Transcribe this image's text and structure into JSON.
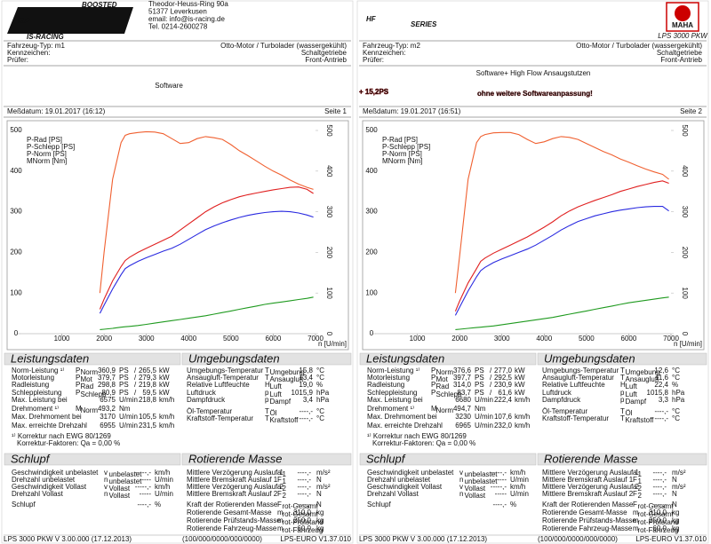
{
  "chart_data": [
    {
      "type": "line",
      "xlabel": "n [U/min]",
      "legend": "upper left",
      "xlim": [
        0,
        7000
      ],
      "ylim": [
        0,
        500
      ],
      "y2lim": [
        0,
        500
      ],
      "xticks": [
        1000,
        2000,
        3000,
        4000,
        5000,
        6000,
        7000
      ],
      "yticks": [
        0,
        100,
        200,
        300,
        400,
        500
      ],
      "y2ticks": [
        0,
        100,
        200,
        300,
        400,
        500
      ],
      "x": [
        1900,
        2000,
        2200,
        2400,
        2500,
        2600,
        2800,
        3000,
        3200,
        3400,
        3600,
        3800,
        4000,
        4200,
        4400,
        4600,
        4800,
        5000,
        5200,
        5400,
        5600,
        5800,
        6000,
        6200,
        6400,
        6600,
        6800,
        6950
      ],
      "series": [
        {
          "name": "P-Rad [PS]",
          "color": "#2a2ae0",
          "values": [
            50,
            70,
            110,
            145,
            160,
            167,
            178,
            187,
            195,
            203,
            210,
            220,
            232,
            244,
            256,
            265,
            273,
            280,
            286,
            291,
            295,
            298,
            300,
            301,
            300,
            297,
            292,
            287
          ]
        },
        {
          "name": "P-Schlepp [PS]",
          "color": "#1f9a1f",
          "values": [
            10,
            11,
            13,
            16,
            17,
            18,
            20,
            23,
            26,
            29,
            32,
            35,
            38,
            41,
            44,
            48,
            52,
            56,
            60,
            64,
            68,
            72,
            75,
            78,
            81,
            84,
            87,
            90
          ]
        },
        {
          "name": "P-Norm [PS]",
          "color": "#e02020",
          "values": [
            60,
            85,
            130,
            165,
            180,
            188,
            200,
            210,
            220,
            230,
            240,
            255,
            270,
            285,
            300,
            312,
            322,
            330,
            337,
            342,
            346,
            350,
            354,
            357,
            360,
            361,
            355,
            345
          ]
        },
        {
          "name": "MNorm [Nm]",
          "color": "#f06030",
          "axis": "y2",
          "values": [
            100,
            200,
            380,
            470,
            488,
            492,
            495,
            497,
            496,
            492,
            480,
            468,
            470,
            480,
            485,
            482,
            478,
            465,
            450,
            438,
            425,
            412,
            400,
            390,
            378,
            368,
            360,
            355
          ]
        }
      ]
    },
    {
      "type": "line",
      "xlabel": "n [U/min]",
      "legend": "upper left",
      "xlim": [
        0,
        7000
      ],
      "ylim": [
        0,
        500
      ],
      "y2lim": [
        0,
        500
      ],
      "xticks": [
        1000,
        2000,
        3000,
        4000,
        5000,
        6000,
        7000
      ],
      "yticks": [
        0,
        100,
        200,
        300,
        400,
        500
      ],
      "y2ticks": [
        0,
        100,
        200,
        300,
        400,
        500
      ],
      "x": [
        1900,
        2000,
        2200,
        2400,
        2500,
        2600,
        2800,
        3000,
        3200,
        3400,
        3600,
        3800,
        4000,
        4200,
        4400,
        4600,
        4800,
        5000,
        5200,
        5400,
        5600,
        5800,
        6000,
        6200,
        6400,
        6600,
        6800,
        6950
      ],
      "series": [
        {
          "name": "P-Rad [PS]",
          "color": "#2a2ae0",
          "values": [
            45,
            65,
            105,
            140,
            155,
            163,
            175,
            184,
            192,
            200,
            208,
            218,
            230,
            242,
            255,
            266,
            276,
            283,
            290,
            295,
            300,
            304,
            307,
            310,
            312,
            313,
            313,
            302
          ]
        },
        {
          "name": "P-Schlepp [PS]",
          "color": "#1f9a1f",
          "values": [
            10,
            11,
            13,
            15,
            16,
            17,
            19,
            22,
            25,
            28,
            31,
            34,
            37,
            40,
            44,
            48,
            52,
            56,
            60,
            64,
            68,
            72,
            76,
            79,
            82,
            85,
            88,
            90
          ]
        },
        {
          "name": "P-Norm [PS]",
          "color": "#e02020",
          "values": [
            55,
            80,
            125,
            160,
            178,
            186,
            198,
            208,
            218,
            228,
            238,
            250,
            262,
            275,
            290,
            302,
            312,
            320,
            328,
            335,
            342,
            350,
            356,
            362,
            367,
            372,
            376,
            370
          ]
        },
        {
          "name": "MNorm [Nm]",
          "color": "#f06030",
          "axis": "y2",
          "values": [
            100,
            190,
            380,
            470,
            485,
            490,
            494,
            495,
            495,
            490,
            478,
            468,
            472,
            480,
            485,
            483,
            478,
            468,
            458,
            448,
            440,
            430,
            422,
            413,
            405,
            398,
            392,
            380
          ]
        }
      ]
    }
  ],
  "panels": [
    {
      "brand": {
        "tag": "BOOSTED",
        "logo": "ISR",
        "name": "IS-RACING",
        "address": [
          "Theodor-Heuss-Ring 90a",
          "51377 Leverkusen",
          "email: info@is-racing.de",
          "Tel. 0214-2600278"
        ]
      },
      "vehicle": [
        [
          "Fahrzeug-Typ: m1",
          "Otto-Motor / Turbolader (wassergekühlt)"
        ],
        [
          "Kennzeichen:",
          "Schaltgetriebe"
        ],
        [
          "Prüfer:",
          "Front-Antrieb"
        ]
      ],
      "headline": {
        "text": "Software"
      },
      "date": "Meßdatum: 19.01.2017 (16:12)",
      "page": "Seite 1",
      "leistung": {
        "title": "Leistungsdaten",
        "rows": [
          {
            "label": "Norm-Leistung ¹⁾",
            "sym": "P",
            "sub": "Norm",
            "v1": "360,9",
            "u1": "PS",
            "sep": "/",
            "v2": "265,5",
            "u2": "kW",
            "color": "#e00000"
          },
          {
            "label": "Motorleistung",
            "sym": "P",
            "sub": "Mot",
            "v1": "379,7",
            "u1": "PS",
            "sep": "/",
            "v2": "279,3",
            "u2": "kW",
            "color": "#e00000"
          },
          {
            "label": "Radleistung",
            "sym": "P",
            "sub": "Rad",
            "v1": "298,8",
            "u1": "PS",
            "sep": "/",
            "v2": "219,8",
            "u2": "kW",
            "color": "#0000d0"
          },
          {
            "label": "Schleppleistung",
            "sym": "P",
            "sub": "Schlepp",
            "v1": "80,9",
            "u1": "PS",
            "sep": "/",
            "v2": "59,5",
            "u2": "kW",
            "color": "#008000"
          },
          {
            "label": "Max. Leistung bei",
            "v1": "6575",
            "u1": "U/min",
            "v2": "218,8",
            "u2": "km/h"
          },
          {
            "label": "Drehmoment ¹⁾",
            "sym": "M",
            "sub": "Norm",
            "v1": "493,2",
            "u1": "Nm",
            "color": "#e00000"
          },
          {
            "label": "Max. Drehmoment bei",
            "v1": "3170",
            "u1": "U/min",
            "v2": "105,5",
            "u2": "km/h"
          },
          {
            "label": "Max. erreichte Drehzahl",
            "v1": "6955",
            "u1": "U/min",
            "v2": "231,5",
            "u2": "km/h"
          }
        ],
        "notes": [
          "¹⁾ Korrektur nach EWG 80/1269",
          "Korrektur-Faktoren: Qa = 0,00 %"
        ]
      },
      "umgebung": {
        "title": "Umgebungsdaten",
        "rows": [
          {
            "label": "Umgebungs-Temperatur",
            "sym": "T",
            "sub": "Umgebung",
            "v1": "15,8",
            "u1": "°C"
          },
          {
            "label": "Ansaugluft-Temperatur",
            "sym": "T",
            "sub": "Ansaugluft",
            "v1": "13,4",
            "u1": "°C"
          },
          {
            "label": "Relative Luftfeuchte",
            "sym": "H",
            "sub": "Luft",
            "v1": "19,0",
            "u1": "%"
          },
          {
            "label": "Luftdruck",
            "sym": "p",
            "sub": "Luft",
            "v1": "1015,9",
            "u1": "hPa"
          },
          {
            "label": "Dampfdruck",
            "sym": "p",
            "sub": "Dampf",
            "v1": "3,4",
            "u1": "hPa"
          },
          {
            "label": "Öl-Temperatur",
            "sym": "T",
            "sub": "Öl",
            "v1": "----,-",
            "u1": "°C"
          },
          {
            "label": "Kraftstoff-Temperatur",
            "sym": "T",
            "sub": "Kraftstoff",
            "v1": "----,-",
            "u1": "°C"
          }
        ]
      },
      "schlupf": {
        "title": "Schlupf",
        "rows": [
          {
            "label": "Geschwindigkeit unbelastet",
            "sym": "v",
            "sub": "unbelastet",
            "v1": "-----,-",
            "u1": "km/h"
          },
          {
            "label": "Drehzahl unbelastet",
            "sym": "n",
            "sub": "unbelastet",
            "v1": "-----",
            "u1": "U/min"
          },
          {
            "label": "Geschwindigkeit Vollast",
            "sym": "v",
            "sub": "Vollast",
            "v1": "-----,-",
            "u1": "km/h"
          },
          {
            "label": "Drehzahl Vollast",
            "sym": "n",
            "sub": "Vollast",
            "v1": "-----",
            "u1": "U/min"
          },
          {
            "label": "Schlupf",
            "v1": "----,-",
            "u1": "%"
          }
        ]
      },
      "rotierend": {
        "title": "Rotierende Masse",
        "rows": [
          {
            "label": "Mittlere Verzögerung Auslauf 1",
            "sym": "a",
            "sub": "1",
            "v1": "----,-",
            "u1": "m/s²"
          },
          {
            "label": "Mittlere Bremskraft Auslauf 1",
            "sym": "F",
            "sub": "1",
            "v1": "----,-",
            "u1": "N"
          },
          {
            "label": "Mittlere Verzögerung Auslauf 2",
            "sym": "a",
            "sub": "2",
            "v1": "----,-",
            "u1": "m/s²"
          },
          {
            "label": "Mittlere Bremskraft Auslauf 2",
            "sym": "F",
            "sub": "2",
            "v1": "----,-",
            "u1": "N"
          },
          {
            "label": "Kraft der Rotierenden Masse",
            "sym": "F",
            "sub": "rot-Gesamt",
            "v1": "----,-",
            "u1": "N"
          },
          {
            "label": "Rotierende Gesamt-Masse",
            "sym": "m",
            "sub": "rot-Gesamt",
            "v1": "310,0",
            "u1": "kg"
          },
          {
            "label": "Rotierende Prüfstands-Masse",
            "sym": "m",
            "sub": "rot-Prüfstand",
            "v1": "250,0",
            "u1": "kg"
          },
          {
            "label": "Rotierende Fahrzeug-Masse",
            "sym": "m",
            "sub": "rot-Fahrzeug",
            "v1": "60,0",
            "u1": "kg"
          }
        ]
      },
      "footer": [
        "LPS 3000 PKW V 3.00.000 (17.12.2013)",
        "(100/000/0000/000/0000)",
        "LPS-EURO V1.37.010"
      ]
    },
    {
      "brand": {
        "logo": "HF",
        "tag": "SERIES",
        "maha": "MAHA",
        "model": "LPS 3000 PKW"
      },
      "vehicle": [
        [
          "Fahrzeug-Typ: m2",
          "Otto-Motor / Turbolader (wassergekühlt)"
        ],
        [
          "Kennzeichen:",
          "Schaltgetriebe"
        ],
        [
          "Prüfer:",
          "Front-Antrieb"
        ]
      ],
      "headline": {
        "text": "Software+ High Flow Ansaugstutzen",
        "gain": "+ 15,2PS",
        "note": "ohne weitere Softwareanpassung!"
      },
      "date": "Meßdatum: 19.01.2017 (16:51)",
      "page": "Seite 2",
      "leistung": {
        "title": "Leistungsdaten",
        "rows": [
          {
            "label": "Norm-Leistung ¹⁾",
            "sym": "P",
            "sub": "Norm",
            "v1": "376,6",
            "u1": "PS",
            "sep": "/",
            "v2": "277,0",
            "u2": "kW",
            "color": "#e00000"
          },
          {
            "label": "Motorleistung",
            "sym": "P",
            "sub": "Mot",
            "v1": "397,7",
            "u1": "PS",
            "sep": "/",
            "v2": "292,5",
            "u2": "kW",
            "color": "#e00000"
          },
          {
            "label": "Radleistung",
            "sym": "P",
            "sub": "Rad",
            "v1": "314,0",
            "u1": "PS",
            "sep": "/",
            "v2": "230,9",
            "u2": "kW",
            "color": "#0000d0"
          },
          {
            "label": "Schleppleistung",
            "sym": "P",
            "sub": "Schlepp",
            "v1": "83,7",
            "u1": "PS",
            "sep": "/",
            "v2": "61,6",
            "u2": "kW",
            "color": "#008000"
          },
          {
            "label": "Max. Leistung bei",
            "v1": "6680",
            "u1": "U/min",
            "v2": "222,4",
            "u2": "km/h"
          },
          {
            "label": "Drehmoment ¹⁾",
            "sym": "M",
            "sub": "Norm",
            "v1": "494,7",
            "u1": "Nm",
            "color": "#e00000"
          },
          {
            "label": "Max. Drehmoment bei",
            "v1": "3230",
            "u1": "U/min",
            "v2": "107,6",
            "u2": "km/h"
          },
          {
            "label": "Max. erreichte Drehzahl",
            "v1": "6965",
            "u1": "U/min",
            "v2": "232,0",
            "u2": "km/h"
          }
        ],
        "notes": [
          "¹⁾ Korrektur nach EWG 80/1269",
          "Korrektur-Faktoren: Qa = 0,00 %"
        ]
      },
      "umgebung": {
        "title": "Umgebungsdaten",
        "rows": [
          {
            "label": "Umgebungs-Temperatur",
            "sym": "T",
            "sub": "Umgebung",
            "v1": "12,6",
            "u1": "°C"
          },
          {
            "label": "Ansaugluft-Temperatur",
            "sym": "T",
            "sub": "Ansaugluft",
            "v1": "11,6",
            "u1": "°C"
          },
          {
            "label": "Relative Luftfeuchte",
            "sym": "H",
            "sub": "Luft",
            "v1": "22,4",
            "u1": "%"
          },
          {
            "label": "Luftdruck",
            "sym": "p",
            "sub": "Luft",
            "v1": "1015,8",
            "u1": "hPa"
          },
          {
            "label": "Dampfdruck",
            "sym": "p",
            "sub": "Dampf",
            "v1": "3,3",
            "u1": "hPa"
          },
          {
            "label": "Öl-Temperatur",
            "sym": "T",
            "sub": "Öl",
            "v1": "----,-",
            "u1": "°C"
          },
          {
            "label": "Kraftstoff-Temperatur",
            "sym": "T",
            "sub": "Kraftstoff",
            "v1": "----,-",
            "u1": "°C"
          }
        ]
      },
      "schlupf": {
        "title": "Schlupf",
        "rows": [
          {
            "label": "Geschwindigkeit unbelastet",
            "sym": "v",
            "sub": "unbelastet",
            "v1": "-----,-",
            "u1": "km/h"
          },
          {
            "label": "Drehzahl unbelastet",
            "sym": "n",
            "sub": "unbelastet",
            "v1": "-----",
            "u1": "U/min"
          },
          {
            "label": "Geschwindigkeit Vollast",
            "sym": "v",
            "sub": "Vollast",
            "v1": "-----,-",
            "u1": "km/h"
          },
          {
            "label": "Drehzahl Vollast",
            "sym": "n",
            "sub": "Vollast",
            "v1": "-----",
            "u1": "U/min"
          },
          {
            "label": "Schlupf",
            "v1": "----,-",
            "u1": "%"
          }
        ]
      },
      "rotierend": {
        "title": "Rotierende Masse",
        "rows": [
          {
            "label": "Mittlere Verzögerung Auslauf 1",
            "sym": "a",
            "sub": "1",
            "v1": "----,-",
            "u1": "m/s²"
          },
          {
            "label": "Mittlere Bremskraft Auslauf 1",
            "sym": "F",
            "sub": "1",
            "v1": "----,-",
            "u1": "N"
          },
          {
            "label": "Mittlere Verzögerung Auslauf 2",
            "sym": "a",
            "sub": "2",
            "v1": "----,-",
            "u1": "m/s²"
          },
          {
            "label": "Mittlere Bremskraft Auslauf 2",
            "sym": "F",
            "sub": "2",
            "v1": "----,-",
            "u1": "N"
          },
          {
            "label": "Kraft der Rotierenden Masse",
            "sym": "F",
            "sub": "rot-Gesamt",
            "v1": "----,-",
            "u1": "N"
          },
          {
            "label": "Rotierende Gesamt-Masse",
            "sym": "m",
            "sub": "rot-Gesamt",
            "v1": "310,0",
            "u1": "kg"
          },
          {
            "label": "Rotierende Prüfstands-Masse",
            "sym": "m",
            "sub": "rot-Prüfstand",
            "v1": "250,0",
            "u1": "kg"
          },
          {
            "label": "Rotierende Fahrzeug-Masse",
            "sym": "m",
            "sub": "rot-Fahrzeug",
            "v1": "60,0",
            "u1": "kg"
          }
        ]
      },
      "footer": [
        "LPS 3000 PKW V 3.00.000 (17.12.2013)",
        "(100/000/0000/000/0000)",
        "LPS-EURO V1.37.010"
      ]
    }
  ]
}
